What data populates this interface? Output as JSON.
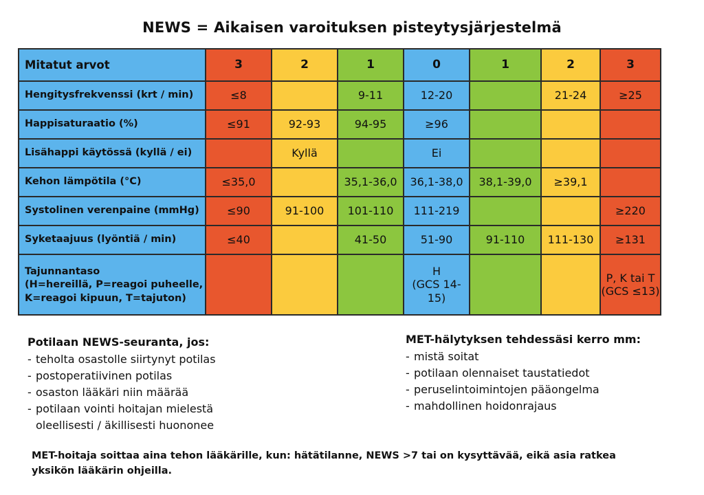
{
  "title": "NEWS = Aikaisen varoituksen pisteytysjärjestelmä",
  "table": {
    "header": {
      "label": "Mitatut arvot",
      "scores": [
        "3",
        "2",
        "1",
        "0",
        "1",
        "2",
        "3"
      ]
    },
    "column_colors": [
      "#e8572e",
      "#fbcb3e",
      "#8cc63f",
      "#5cb4ec",
      "#8cc63f",
      "#fbcb3e",
      "#e8572e"
    ],
    "rows": [
      {
        "label": "Hengitysfrekvenssi (krt / min)",
        "cells": [
          "≤8",
          "",
          "9-11",
          "12-20",
          "",
          "21-24",
          "≥25"
        ]
      },
      {
        "label": "Happisaturaatio (%)",
        "cells": [
          "≤91",
          "92-93",
          "94-95",
          "≥96",
          "",
          "",
          ""
        ]
      },
      {
        "label": "Lisähappi käytössä (kyllä / ei)",
        "cells": [
          "",
          "Kyllä",
          "",
          "Ei",
          "",
          "",
          ""
        ]
      },
      {
        "label": "Kehon lämpötila (°C)",
        "cells": [
          "≤35,0",
          "",
          "35,1-36,0",
          "36,1-38,0",
          "38,1-39,0",
          "≥39,1",
          ""
        ]
      },
      {
        "label": "Systolinen verenpaine (mmHg)",
        "cells": [
          "≤90",
          "91-100",
          "101-110",
          "111-219",
          "",
          "",
          "≥220"
        ]
      },
      {
        "label": "Syketaajuus (lyöntiä / min)",
        "cells": [
          "≤40",
          "",
          "41-50",
          "51-90",
          "91-110",
          "111-130",
          "≥131"
        ]
      }
    ],
    "consciousness": {
      "label_lines": [
        "Tajunnantaso",
        "(H=hereillä, P=reagoi puheelle,",
        "K=reagoi kipuun, T=tajuton)"
      ],
      "zero_lines": [
        "H",
        "(GCS 14-15)"
      ],
      "three_lines": [
        "P, K tai T",
        "(GCS ≤13)"
      ]
    }
  },
  "left_block": {
    "title": "Potilaan NEWS-seuranta, jos:",
    "items": [
      "teholta osastolle siirtynyt potilas",
      "postoperatiivinen potilas",
      "osaston lääkäri niin määrää",
      "potilaan vointi hoitajan mielestä oleellisesti / äkillisesti huononee"
    ]
  },
  "right_block": {
    "title": "MET-hälytyksen tehdessäsi kerro mm:",
    "items": [
      "mistä soitat",
      "potilaan olennaiset taustatiedot",
      "peruselintoimintojen pääongelma",
      "mahdollinen hoidonrajaus"
    ]
  },
  "footer": "MET-hoitaja soittaa aina tehon lääkärille, kun: hätätilanne, NEWS >7 tai on kysyttävää, eikä asia ratkea yksikön lääkärin ohjeilla."
}
